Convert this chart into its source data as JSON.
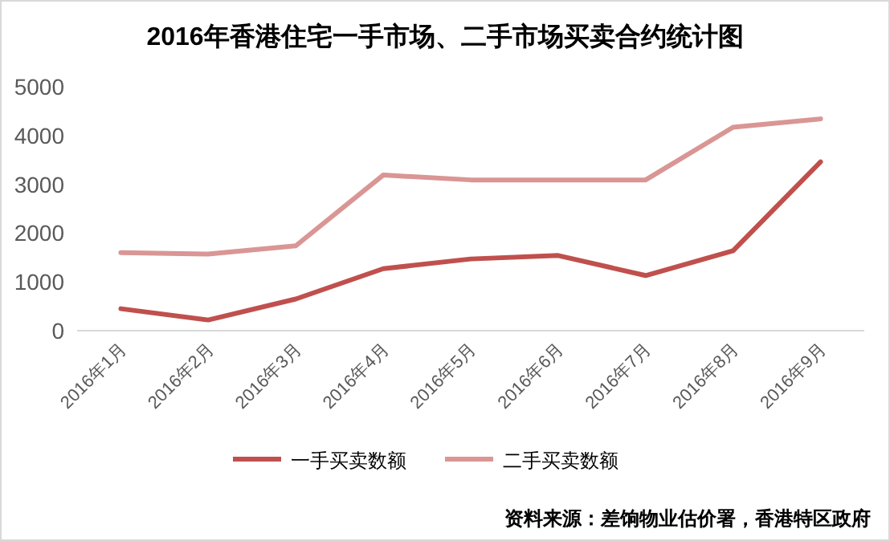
{
  "chart_data": {
    "type": "line",
    "title": "2016年香港住宅一手市场、二手市场买卖合约统计图",
    "categories": [
      "2016年1月",
      "2016年2月",
      "2016年3月",
      "2016年4月",
      "2016年5月",
      "2016年6月",
      "2016年7月",
      "2016年8月",
      "2016年9月"
    ],
    "series": [
      {
        "name": "一手买卖数额",
        "color": "#c0504d",
        "values": [
          450,
          220,
          650,
          1270,
          1470,
          1540,
          1130,
          1640,
          3460
        ]
      },
      {
        "name": "二手买卖数额",
        "color": "#d99694",
        "values": [
          1600,
          1570,
          1740,
          3190,
          3090,
          3090,
          3090,
          4170,
          4340
        ]
      }
    ],
    "ylim": [
      0,
      5000
    ],
    "yticks": [
      0,
      1000,
      2000,
      3000,
      4000,
      5000
    ],
    "legend": "bottom",
    "annotations": [
      "资料来源：差饷物业估价署，香港特区政府"
    ]
  }
}
